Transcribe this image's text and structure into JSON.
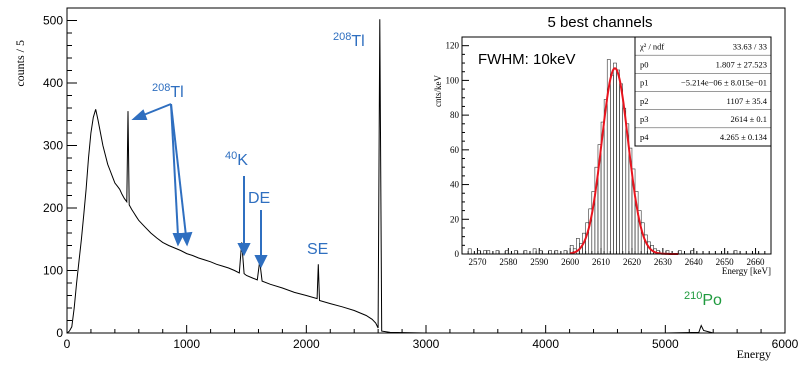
{
  "chart_data": [
    {
      "type": "line",
      "xlabel": "Energy",
      "ylabel": "counts / 5",
      "xlim": [
        0,
        6000
      ],
      "ylim": [
        0,
        520
      ],
      "x_ticks": [
        "0",
        "1000",
        "2000",
        "3000",
        "4000",
        "5000",
        "6000"
      ],
      "y_ticks": [
        "0",
        "100",
        "200",
        "300",
        "400",
        "500"
      ],
      "grid": false,
      "series": [
        {
          "values": [
            [
              0,
              0
            ],
            [
              20,
              3
            ],
            [
              40,
              10
            ],
            [
              60,
              40
            ],
            [
              80,
              80
            ],
            [
              100,
              115
            ],
            [
              120,
              150
            ],
            [
              140,
              190
            ],
            [
              160,
              230
            ],
            [
              180,
              280
            ],
            [
              200,
              320
            ],
            [
              220,
              345
            ],
            [
              240,
              358
            ],
            [
              260,
              340
            ],
            [
              280,
              320
            ],
            [
              300,
              300
            ],
            [
              320,
              285
            ],
            [
              340,
              270
            ],
            [
              360,
              260
            ],
            [
              380,
              250
            ],
            [
              400,
              240
            ],
            [
              420,
              235
            ],
            [
              440,
              230
            ],
            [
              460,
              222
            ],
            [
              480,
              215
            ],
            [
              500,
              210
            ],
            [
              510,
              355
            ],
            [
              520,
              205
            ],
            [
              540,
              198
            ],
            [
              560,
              192
            ],
            [
              580,
              186
            ],
            [
              600,
              180
            ],
            [
              650,
              170
            ],
            [
              700,
              160
            ],
            [
              750,
              152
            ],
            [
              800,
              145
            ],
            [
              850,
              140
            ],
            [
              900,
              136
            ],
            [
              950,
              132
            ],
            [
              1000,
              127
            ],
            [
              1050,
              124
            ],
            [
              1100,
              120
            ],
            [
              1150,
              117
            ],
            [
              1200,
              114
            ],
            [
              1250,
              110
            ],
            [
              1300,
              107
            ],
            [
              1350,
              104
            ],
            [
              1400,
              100
            ],
            [
              1440,
              96
            ],
            [
              1460,
              145
            ],
            [
              1480,
              95
            ],
            [
              1500,
              92
            ],
            [
              1550,
              88
            ],
            [
              1590,
              85
            ],
            [
              1610,
              115
            ],
            [
              1630,
              83
            ],
            [
              1700,
              78
            ],
            [
              1800,
              72
            ],
            [
              1900,
              65
            ],
            [
              2000,
              60
            ],
            [
              2090,
              55
            ],
            [
              2100,
              110
            ],
            [
              2110,
              52
            ],
            [
              2200,
              47
            ],
            [
              2300,
              42
            ],
            [
              2400,
              36
            ],
            [
              2500,
              28
            ],
            [
              2550,
              22
            ],
            [
              2580,
              16
            ],
            [
              2600,
              8
            ],
            [
              2614,
              502
            ],
            [
              2630,
              3
            ],
            [
              2700,
              1
            ],
            [
              3000,
              0
            ],
            [
              3500,
              0
            ],
            [
              4000,
              0
            ],
            [
              4500,
              0
            ],
            [
              5000,
              0
            ],
            [
              5280,
              1
            ],
            [
              5300,
              12
            ],
            [
              5320,
              4
            ],
            [
              5400,
              0
            ],
            [
              6000,
              0
            ]
          ]
        }
      ],
      "annotations": [
        {
          "sup": "208",
          "text": "Tl",
          "at_energy": 2614
        },
        {
          "sup": "208",
          "text": "Tl",
          "at_energy": [
            511,
            860,
            1000
          ]
        },
        {
          "sup": "40",
          "text": "K",
          "at_energy": 1460
        },
        {
          "text": "DE",
          "at_energy": 1592
        },
        {
          "text": "SE",
          "at_energy": 2103
        },
        {
          "sup": "210",
          "text": "Po",
          "at_energy": 5304
        }
      ]
    },
    {
      "type": "bar",
      "title": "5 best channels",
      "xlabel": "Energy [keV]",
      "ylabel": "cnts/keV",
      "xlim": [
        2565,
        2665
      ],
      "ylim": [
        0,
        125
      ],
      "x_ticks": [
        "2570",
        "2580",
        "2590",
        "2600",
        "2610",
        "2620",
        "2630",
        "2640",
        "2650",
        "2660"
      ],
      "y_ticks": [
        "0",
        "20",
        "40",
        "60",
        "80",
        "100",
        "120"
      ],
      "bin_width": 1,
      "histogram": [
        [
          2565,
          0
        ],
        [
          2566,
          0
        ],
        [
          2567,
          3
        ],
        [
          2568,
          0
        ],
        [
          2569,
          0
        ],
        [
          2570,
          2
        ],
        [
          2571,
          0
        ],
        [
          2572,
          2
        ],
        [
          2573,
          2
        ],
        [
          2574,
          0
        ],
        [
          2575,
          0
        ],
        [
          2576,
          2
        ],
        [
          2577,
          0
        ],
        [
          2578,
          0
        ],
        [
          2579,
          2
        ],
        [
          2580,
          0
        ],
        [
          2581,
          0
        ],
        [
          2582,
          2
        ],
        [
          2583,
          0
        ],
        [
          2584,
          0
        ],
        [
          2585,
          2
        ],
        [
          2586,
          0
        ],
        [
          2587,
          0
        ],
        [
          2588,
          3
        ],
        [
          2589,
          0
        ],
        [
          2590,
          2
        ],
        [
          2591,
          0
        ],
        [
          2592,
          0
        ],
        [
          2593,
          2
        ],
        [
          2594,
          0
        ],
        [
          2595,
          2
        ],
        [
          2596,
          0
        ],
        [
          2597,
          0
        ],
        [
          2598,
          2
        ],
        [
          2599,
          0
        ],
        [
          2600,
          5
        ],
        [
          2601,
          3
        ],
        [
          2602,
          9
        ],
        [
          2603,
          6
        ],
        [
          2604,
          12
        ],
        [
          2605,
          18
        ],
        [
          2606,
          26
        ],
        [
          2607,
          36
        ],
        [
          2608,
          50
        ],
        [
          2609,
          63
        ],
        [
          2610,
          76
        ],
        [
          2611,
          89
        ],
        [
          2612,
          112
        ],
        [
          2613,
          103
        ],
        [
          2614,
          110
        ],
        [
          2615,
          106
        ],
        [
          2616,
          98
        ],
        [
          2617,
          84
        ],
        [
          2618,
          75
        ],
        [
          2619,
          61
        ],
        [
          2620,
          49
        ],
        [
          2621,
          36
        ],
        [
          2622,
          25
        ],
        [
          2623,
          18
        ],
        [
          2624,
          11
        ],
        [
          2625,
          7
        ],
        [
          2626,
          5
        ],
        [
          2627,
          3
        ],
        [
          2628,
          2
        ],
        [
          2629,
          0
        ],
        [
          2630,
          0
        ],
        [
          2631,
          2
        ],
        [
          2632,
          0
        ],
        [
          2633,
          0
        ],
        [
          2634,
          0
        ],
        [
          2635,
          2
        ],
        [
          2636,
          0
        ],
        [
          2637,
          0
        ],
        [
          2638,
          0
        ],
        [
          2639,
          2
        ],
        [
          2640,
          0
        ],
        [
          2641,
          0
        ],
        [
          2642,
          0
        ],
        [
          2643,
          0
        ],
        [
          2644,
          0
        ],
        [
          2645,
          0
        ],
        [
          2646,
          0
        ],
        [
          2647,
          0
        ],
        [
          2648,
          0
        ],
        [
          2649,
          0
        ],
        [
          2650,
          0
        ],
        [
          2651,
          0
        ],
        [
          2652,
          0
        ],
        [
          2653,
          2
        ],
        [
          2654,
          0
        ],
        [
          2655,
          0
        ],
        [
          2656,
          0
        ],
        [
          2657,
          0
        ],
        [
          2658,
          0
        ],
        [
          2659,
          0
        ],
        [
          2660,
          0
        ],
        [
          2661,
          0
        ],
        [
          2662,
          0
        ],
        [
          2663,
          0
        ],
        [
          2664,
          0
        ]
      ],
      "fit": {
        "color": "#e8141e",
        "amplitude": 107,
        "mean": 2614.5,
        "sigma": 4.265,
        "baseline": 0,
        "range": [
          2600,
          2635
        ]
      },
      "annotation": "FWHM: 10keV",
      "stats": [
        [
          "χ² / ndf",
          "33.63 / 33"
        ],
        [
          "p0",
          "1.807 ± 27.523"
        ],
        [
          "p1",
          "−5.214e−06 ± 8.015e−01"
        ],
        [
          "p2",
          "1107 ± 35.4"
        ],
        [
          "p3",
          "2614 ± 0.1"
        ],
        [
          "p4",
          "4.265 ± 0.134"
        ]
      ]
    }
  ],
  "colors": {
    "label_blue": "#2f6fc0",
    "label_green": "#1f9a3e",
    "fit_red": "#e8141e"
  }
}
